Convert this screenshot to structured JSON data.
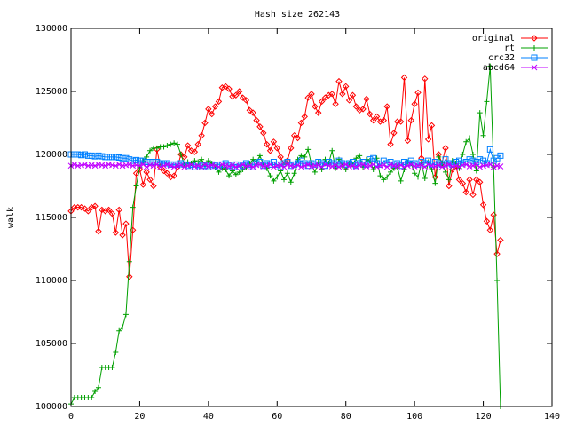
{
  "chart_data": {
    "type": "line",
    "title": "Hash size 262143",
    "ylabel": "walk",
    "xlim": [
      0,
      140
    ],
    "xticks": [
      0,
      20,
      40,
      60,
      80,
      100,
      120,
      140
    ],
    "ylim": [
      100000,
      130000
    ],
    "yticks": [
      100000,
      105000,
      110000,
      115000,
      120000,
      125000,
      130000
    ],
    "legend": "upper right",
    "x": [
      0,
      1,
      2,
      3,
      4,
      5,
      6,
      7,
      8,
      9,
      10,
      11,
      12,
      13,
      14,
      15,
      16,
      17,
      18,
      19,
      20,
      21,
      22,
      23,
      24,
      25,
      26,
      27,
      28,
      29,
      30,
      31,
      32,
      33,
      34,
      35,
      36,
      37,
      38,
      39,
      40,
      41,
      42,
      43,
      44,
      45,
      46,
      47,
      48,
      49,
      50,
      51,
      52,
      53,
      54,
      55,
      56,
      57,
      58,
      59,
      60,
      61,
      62,
      63,
      64,
      65,
      66,
      67,
      68,
      69,
      70,
      71,
      72,
      73,
      74,
      75,
      76,
      77,
      78,
      79,
      80,
      81,
      82,
      83,
      84,
      85,
      86,
      87,
      88,
      89,
      90,
      91,
      92,
      93,
      94,
      95,
      96,
      97,
      98,
      99,
      100,
      101,
      102,
      103,
      104,
      105,
      106,
      107,
      108,
      109,
      110,
      111,
      112,
      113,
      114,
      115,
      116,
      117,
      118,
      119,
      120,
      121,
      122,
      123,
      124,
      125
    ],
    "series": [
      {
        "name": "original",
        "color": "#ff0000",
        "marker": "diamond",
        "values": [
          115500,
          115800,
          115800,
          115800,
          115700,
          115500,
          115800,
          115900,
          113900,
          115600,
          115500,
          115600,
          115300,
          113800,
          115600,
          113600,
          114500,
          110300,
          114000,
          118500,
          118800,
          117600,
          118600,
          118000,
          117500,
          120400,
          119000,
          118700,
          118500,
          118200,
          118300,
          119000,
          120000,
          119800,
          120700,
          120300,
          120200,
          120800,
          121500,
          122500,
          123600,
          123200,
          123800,
          124200,
          125300,
          125400,
          125200,
          124600,
          124700,
          125000,
          124500,
          124300,
          123500,
          123300,
          122700,
          122200,
          121700,
          120800,
          120300,
          121000,
          120500,
          119800,
          119200,
          119500,
          120500,
          121500,
          121300,
          122500,
          123000,
          124500,
          124800,
          123800,
          123300,
          124200,
          124500,
          124700,
          124800,
          124000,
          125800,
          124800,
          125400,
          124300,
          124700,
          123800,
          123500,
          123600,
          124400,
          123200,
          122700,
          123000,
          122600,
          122700,
          123800,
          120800,
          121700,
          122600,
          122600,
          126100,
          121100,
          122700,
          124000,
          124900,
          119700,
          126000,
          121200,
          122300,
          118200,
          120000,
          119300,
          120500,
          117500,
          118800,
          119100,
          118000,
          117700,
          117000,
          118000,
          116800,
          118000,
          117800,
          116000,
          114700,
          114000,
          115200,
          112100,
          113200
        ]
      },
      {
        "name": "rt",
        "color": "#00a000",
        "marker": "plus",
        "values": [
          100200,
          100700,
          100700,
          100700,
          100700,
          100700,
          100700,
          101200,
          101500,
          103100,
          103100,
          103100,
          103100,
          104300,
          106000,
          106300,
          107300,
          111500,
          115800,
          117500,
          119000,
          119500,
          119800,
          120300,
          120500,
          120500,
          120600,
          120600,
          120700,
          120800,
          120900,
          120800,
          120000,
          119200,
          119400,
          119300,
          119500,
          119400,
          119600,
          119200,
          119500,
          119300,
          119000,
          118600,
          118900,
          118800,
          118300,
          118700,
          118400,
          118600,
          118800,
          119000,
          119300,
          119600,
          119400,
          119900,
          119200,
          118900,
          118300,
          117900,
          118200,
          118700,
          118000,
          118500,
          117800,
          118500,
          119600,
          119900,
          119800,
          120400,
          119200,
          118600,
          119400,
          118800,
          119600,
          119300,
          120300,
          118900,
          119600,
          119100,
          118800,
          119300,
          119200,
          119700,
          119900,
          119000,
          119600,
          119500,
          118800,
          119700,
          118300,
          118000,
          118200,
          118600,
          118900,
          119000,
          117900,
          118800,
          119400,
          119300,
          118500,
          118200,
          119300,
          118100,
          119400,
          118800,
          117700,
          119800,
          119300,
          118600,
          118000,
          119500,
          119300,
          118900,
          120000,
          121000,
          121300,
          120000,
          118700,
          123300,
          121500,
          124200,
          127000,
          119000,
          110000,
          100000
        ]
      },
      {
        "name": "crc32",
        "color": "#0080ff",
        "marker": "square",
        "values": [
          120000,
          120000,
          120000,
          119950,
          120000,
          119900,
          119900,
          119850,
          119900,
          119850,
          119800,
          119800,
          119800,
          119800,
          119750,
          119700,
          119700,
          119600,
          119500,
          119550,
          119500,
          119500,
          119400,
          119400,
          119400,
          119400,
          119300,
          119300,
          119300,
          119200,
          119200,
          119200,
          119300,
          119200,
          119100,
          119200,
          119000,
          119200,
          119100,
          119100,
          119000,
          119200,
          119100,
          119000,
          119200,
          119300,
          119100,
          119000,
          119200,
          119000,
          119100,
          119300,
          119200,
          119000,
          119300,
          119400,
          119100,
          119300,
          119200,
          119400,
          119200,
          119000,
          119300,
          119400,
          119100,
          119200,
          119300,
          119500,
          119300,
          119100,
          119300,
          119200,
          119400,
          119300,
          119100,
          119400,
          119300,
          119200,
          119500,
          119300,
          119200,
          119300,
          119400,
          119100,
          119300,
          119400,
          119200,
          119600,
          119700,
          119300,
          119200,
          119500,
          119300,
          119400,
          119200,
          119300,
          119100,
          119400,
          119300,
          119500,
          119300,
          119200,
          119400,
          119300,
          119500,
          119200,
          119400,
          119300,
          119200,
          119600,
          119300,
          119200,
          119400,
          119500,
          119300,
          119400,
          119600,
          119500,
          119400,
          119600,
          119500,
          119300,
          120400,
          119500,
          119700,
          119900
        ]
      },
      {
        "name": "abcd64",
        "color": "#c000ff",
        "marker": "cross",
        "values": [
          119100,
          119200,
          119100,
          119150,
          119200,
          119100,
          119150,
          119100,
          119200,
          119150,
          119100,
          119200,
          119150,
          119100,
          119200,
          119100,
          119150,
          119200,
          119100,
          119150,
          119100,
          119200,
          119000,
          119150,
          119100,
          119200,
          119000,
          119100,
          119200,
          119100,
          119000,
          119100,
          119150,
          119000,
          119100,
          119200,
          119050,
          119100,
          119000,
          119200,
          119050,
          119150,
          119100,
          119000,
          119200,
          119100,
          119050,
          119150,
          119000,
          119100,
          119200,
          119050,
          119100,
          119000,
          119150,
          119200,
          119050,
          119100,
          119200,
          119000,
          119100,
          119150,
          119000,
          119200,
          119100,
          119050,
          119150,
          119000,
          119100,
          119200,
          119050,
          119100,
          119150,
          119000,
          119200,
          119100,
          119050,
          119150,
          119000,
          119100,
          119200,
          119050,
          119100,
          119000,
          119150,
          119200,
          119050,
          119100,
          119200,
          119000,
          119100,
          119150,
          119000,
          119200,
          119100,
          119050,
          119150,
          119000,
          119100,
          119200,
          119050,
          119100,
          119150,
          119000,
          119200,
          119100,
          119050,
          119150,
          119000,
          119100,
          119200,
          119050,
          119100,
          119000,
          119150,
          119200,
          119050,
          119100,
          119200,
          119000,
          119100,
          119150,
          119200,
          119000,
          119100,
          119050
        ]
      }
    ]
  }
}
